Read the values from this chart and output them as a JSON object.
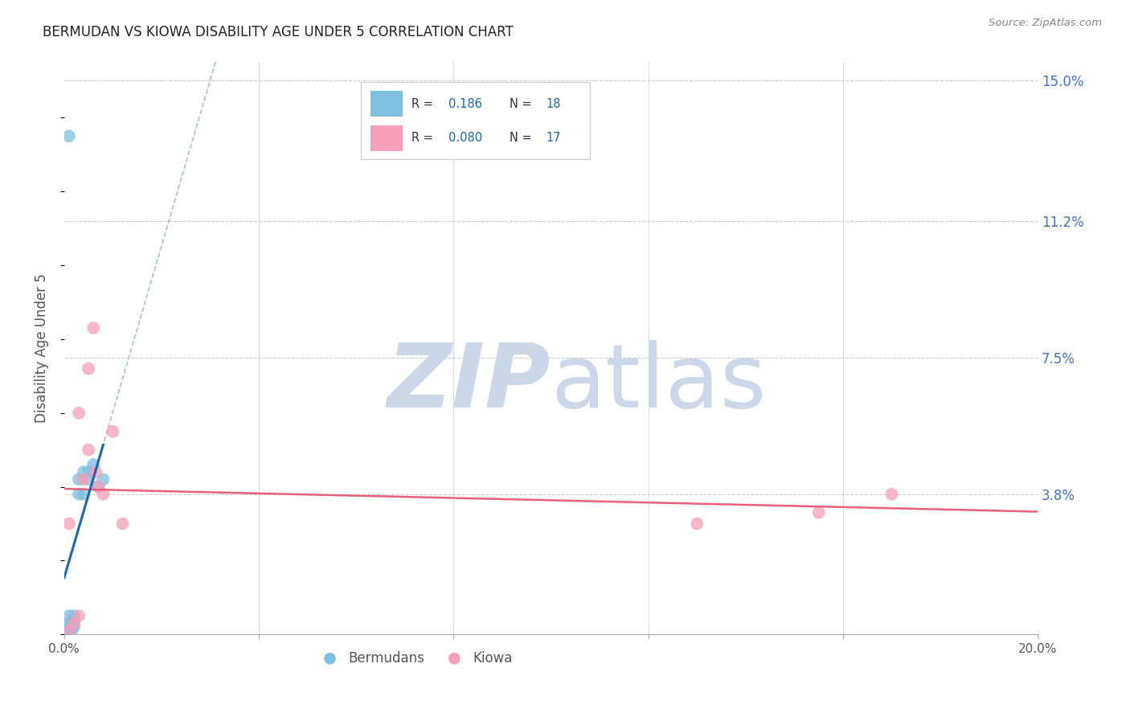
{
  "title": "BERMUDAN VS KIOWA DISABILITY AGE UNDER 5 CORRELATION CHART",
  "source": "Source: ZipAtlas.com",
  "ylabel": "Disability Age Under 5",
  "xlim": [
    0.0,
    0.2
  ],
  "ylim": [
    0.0,
    0.155
  ],
  "xticks": [
    0.0,
    0.04,
    0.08,
    0.12,
    0.16,
    0.2
  ],
  "xticklabels": [
    "0.0%",
    "",
    "",
    "",
    "",
    "20.0%"
  ],
  "xtick_minor": [
    0.04,
    0.08,
    0.12,
    0.16
  ],
  "ytick_positions": [
    0.038,
    0.075,
    0.112,
    0.15
  ],
  "ytick_labels": [
    "3.8%",
    "7.5%",
    "11.2%",
    "15.0%"
  ],
  "bermudan_x": [
    0.0005,
    0.001,
    0.001,
    0.001,
    0.0015,
    0.002,
    0.002,
    0.002,
    0.003,
    0.003,
    0.004,
    0.004,
    0.005,
    0.005,
    0.006,
    0.007,
    0.008,
    0.001
  ],
  "bermudan_y": [
    0.001,
    0.002,
    0.003,
    0.005,
    0.001,
    0.002,
    0.003,
    0.005,
    0.038,
    0.042,
    0.038,
    0.044,
    0.042,
    0.044,
    0.046,
    0.04,
    0.042,
    0.135
  ],
  "kiowa_x": [
    0.001,
    0.001,
    0.002,
    0.003,
    0.003,
    0.004,
    0.005,
    0.005,
    0.006,
    0.0065,
    0.007,
    0.008,
    0.01,
    0.012,
    0.13,
    0.155,
    0.17
  ],
  "kiowa_y": [
    0.001,
    0.03,
    0.003,
    0.06,
    0.005,
    0.042,
    0.05,
    0.072,
    0.083,
    0.044,
    0.04,
    0.038,
    0.055,
    0.03,
    0.03,
    0.033,
    0.038
  ],
  "bermudan_color": "#7fbfdf",
  "kiowa_color": "#f4a0b8",
  "bermudan_line_color": "#2166ac",
  "kiowa_line_color": "#e8607a",
  "dashed_line_color": "#aabfcf",
  "grid_color": "#cccccc",
  "grid_h_color": "#cccccc",
  "background_color": "#ffffff",
  "watermark_color": "#ccd8e8",
  "legend_r1_val": "0.186",
  "legend_r1_n": "18",
  "legend_r2_val": "0.080",
  "legend_r2_n": "17",
  "legend_text_color": "#1a1a2e",
  "legend_val_color": "#2166ac",
  "bottom_legend_color": "#555555"
}
